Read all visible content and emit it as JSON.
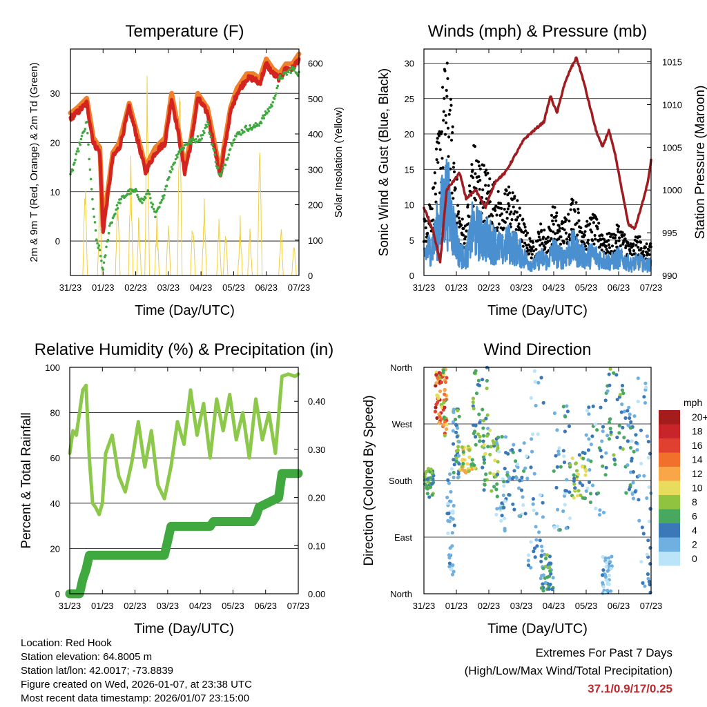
{
  "chart_data": [
    {
      "id": "temperature",
      "type": "line",
      "title": "Temperature (F)",
      "xlabel": "Time (Day/UTC)",
      "ylabel_left": "2m & 9m T (Red, Orange) & 2m Td (Green)",
      "ylabel_right": "Solar Insolation (Yellow)",
      "x_ticks": [
        "31/23",
        "01/23",
        "02/23",
        "03/23",
        "04/23",
        "05/23",
        "06/23",
        "07/23"
      ],
      "ylim_left": [
        -7,
        39
      ],
      "yticks_left": [
        "0",
        "10",
        "20",
        "30"
      ],
      "ylim_right": [
        0,
        640
      ],
      "yticks_right": [
        "0",
        "100",
        "200",
        "300",
        "400",
        "500",
        "600"
      ],
      "series": [
        {
          "name": "2m T",
          "color": "#d42420",
          "x": [
            0,
            0.2,
            0.5,
            0.7,
            0.9,
            1.0,
            1.3,
            1.5,
            1.8,
            2.0,
            2.3,
            2.6,
            2.9,
            3.1,
            3.3,
            3.5,
            3.7,
            3.9,
            4.2,
            4.5,
            4.6,
            4.7,
            4.9,
            5.1,
            5.4,
            5.6,
            5.8,
            6.0,
            6.2,
            6.4,
            6.6,
            6.8,
            7.0
          ],
          "values": [
            25,
            26,
            28,
            20,
            18,
            2,
            17,
            19,
            27,
            22,
            14,
            18,
            20,
            29,
            22,
            14,
            20,
            29,
            26,
            16,
            13,
            18,
            26,
            30,
            33,
            33,
            32,
            36,
            34,
            33,
            35,
            35,
            37
          ]
        },
        {
          "name": "9m T",
          "color": "#f0802a",
          "x": [
            0,
            0.2,
            0.5,
            0.7,
            0.9,
            1.0,
            1.3,
            1.5,
            1.8,
            2.0,
            2.3,
            2.6,
            2.9,
            3.1,
            3.3,
            3.5,
            3.7,
            3.9,
            4.2,
            4.5,
            4.6,
            4.7,
            4.9,
            5.1,
            5.4,
            5.6,
            5.8,
            6.0,
            6.2,
            6.4,
            6.6,
            6.8,
            7.0
          ],
          "values": [
            26,
            27,
            29,
            21,
            19,
            3,
            18,
            20,
            28,
            23,
            15,
            19,
            21,
            30,
            23,
            15,
            21,
            30,
            27,
            17,
            14,
            19,
            27,
            31,
            34,
            34,
            33,
            37,
            35,
            34,
            36,
            36,
            38
          ]
        },
        {
          "name": "2m Td",
          "color": "#3fa83f",
          "x": [
            0,
            0.3,
            0.5,
            0.65,
            0.8,
            0.9,
            1.0,
            1.2,
            1.5,
            1.8,
            2.0,
            2.2,
            2.4,
            2.6,
            2.8,
            3.0,
            3.3,
            3.6,
            4.0,
            4.2,
            4.5,
            4.6,
            4.8,
            5.0,
            5.2,
            5.4,
            5.6,
            5.8,
            6.0,
            6.2,
            6.4,
            6.6,
            6.8,
            7.0
          ],
          "values": [
            13,
            20,
            24,
            10,
            0,
            -2,
            -6,
            3,
            8,
            10,
            10,
            8,
            10,
            5,
            8,
            13,
            18,
            20,
            21,
            24,
            15,
            13,
            17,
            21,
            22,
            23,
            23,
            24,
            26,
            28,
            33,
            34,
            35,
            34
          ]
        },
        {
          "name": "Solar Insolation",
          "axis": "right",
          "color": "#f0d040"
        }
      ]
    },
    {
      "id": "winds",
      "type": "scatter",
      "title": "Winds (mph) & Pressure (mb)",
      "xlabel": "Time (Day/UTC)",
      "ylabel_left": "Sonic Wind & Gust (Blue, Black)",
      "ylabel_right": "Station Pressure (Maroon)",
      "x_ticks": [
        "31/23",
        "01/23",
        "02/23",
        "03/23",
        "04/23",
        "05/23",
        "06/23",
        "07/23"
      ],
      "ylim_left": [
        0,
        32
      ],
      "yticks_left": [
        "0",
        "5",
        "10",
        "15",
        "20",
        "25",
        "30"
      ],
      "ylim_right": [
        990,
        1016.5
      ],
      "yticks_right": [
        "990",
        "995",
        "1000",
        "1005",
        "1010",
        "1015"
      ],
      "series": [
        {
          "name": "Gust",
          "color": "#000000",
          "max": 30
        },
        {
          "name": "Sonic Wind",
          "color": "#4a8fd0",
          "max": 17
        },
        {
          "name": "Station Pressure",
          "color": "#a01c20",
          "x": [
            0,
            0.3,
            0.5,
            0.7,
            0.9,
            1.1,
            1.3,
            1.6,
            1.9,
            2.2,
            2.5,
            2.8,
            3.1,
            3.4,
            3.7,
            3.9,
            4.1,
            4.3,
            4.5,
            4.7,
            4.9,
            5.1,
            5.3,
            5.5,
            5.7,
            5.9,
            6.1,
            6.3,
            6.5,
            6.7,
            6.9,
            7.0
          ],
          "values": [
            998,
            995,
            991.5,
            1000,
            1001,
            1002,
            999,
            1000,
            998,
            1001,
            1002,
            1004,
            1006,
            1007,
            1008,
            1011,
            1009,
            1012,
            1014,
            1015.5,
            1013,
            1010,
            1007,
            1005,
            1007,
            1004,
            1000,
            996,
            995.5,
            998,
            1001,
            1003.5
          ]
        }
      ]
    },
    {
      "id": "humidity",
      "type": "line",
      "title": "Relative Humidity (%) & Precipitation (in)",
      "xlabel": "Time (Day/UTC)",
      "ylabel_left": "Percent & Total Rainfall",
      "ylim_left": [
        0,
        100
      ],
      "yticks_left": [
        "0",
        "20",
        "40",
        "60",
        "80",
        "100"
      ],
      "ylim_right": [
        0,
        0.4706
      ],
      "yticks_right": [
        "0.00",
        "0.10",
        "0.20",
        "0.30",
        "0.40"
      ],
      "x_ticks": [
        "31/23",
        "01/23",
        "02/23",
        "03/23",
        "04/23",
        "05/23",
        "06/23",
        "07/23"
      ],
      "series": [
        {
          "name": "Relative Humidity",
          "color": "#8cc84a",
          "x": [
            0,
            0.1,
            0.2,
            0.4,
            0.5,
            0.6,
            0.7,
            0.8,
            0.9,
            1.0,
            1.1,
            1.3,
            1.5,
            1.7,
            1.9,
            2.1,
            2.3,
            2.5,
            2.7,
            2.9,
            3.1,
            3.3,
            3.5,
            3.7,
            3.9,
            4.1,
            4.3,
            4.5,
            4.7,
            4.9,
            5.1,
            5.3,
            5.5,
            5.7,
            5.9,
            6.1,
            6.3,
            6.5,
            6.7,
            6.9,
            7.0
          ],
          "values": [
            62,
            72,
            70,
            90,
            92,
            60,
            40,
            38,
            35,
            40,
            62,
            70,
            52,
            45,
            58,
            76,
            56,
            72,
            48,
            42,
            56,
            76,
            66,
            90,
            70,
            84,
            60,
            86,
            72,
            88,
            68,
            80,
            60,
            86,
            68,
            80,
            62,
            96,
            97,
            96,
            97
          ]
        },
        {
          "name": "Total Precipitation",
          "axis": "right",
          "color": "#3fa83f",
          "x": [
            0,
            0.3,
            0.4,
            0.5,
            0.6,
            2.9,
            3.0,
            3.1,
            4.3,
            4.4,
            5.6,
            5.7,
            5.8,
            6.4,
            6.5,
            7.0
          ],
          "values": [
            0,
            0,
            0.03,
            0.05,
            0.08,
            0.08,
            0.11,
            0.14,
            0.14,
            0.15,
            0.15,
            0.16,
            0.18,
            0.2,
            0.25,
            0.25
          ]
        }
      ]
    },
    {
      "id": "direction",
      "type": "scatter",
      "title": "Wind Direction",
      "xlabel": "Time (Day/UTC)",
      "ylabel_left": "Direction (Colored By Speed)",
      "x_ticks": [
        "31/23",
        "01/23",
        "02/23",
        "03/23",
        "04/23",
        "05/23",
        "06/23",
        "07/23"
      ],
      "y_ticks": [
        "North",
        "East",
        "South",
        "West",
        "North"
      ],
      "ylim": [
        0,
        360
      ],
      "legend_title": "mph",
      "legend_labels": [
        "20+",
        "18",
        "16",
        "14",
        "12",
        "10",
        "8",
        "6",
        "4",
        "2",
        "0"
      ],
      "legend_colors": [
        "#a51c1c",
        "#c8242a",
        "#e04030",
        "#f0702c",
        "#f8a648",
        "#e8dc5c",
        "#90c440",
        "#48a860",
        "#3a78b8",
        "#70b0e0",
        "#bce4f8"
      ]
    }
  ],
  "info": {
    "location": "Location: Red Hook",
    "elevation": "Station elevation: 64.8005 m",
    "latlon": "Station lat/lon: 42.0017; -73.8839",
    "created": "Figure created on Wed, 2026-01-07, at 23:38 UTC",
    "timestamp": "Most recent data timestamp: 2026/01/07 23:15:00"
  },
  "extremes": {
    "title": "Extremes For Past 7 Days",
    "subtitle": "(High/Low/Max Wind/Total Precipitation)",
    "values": "37.1/0.9/17/0.25"
  }
}
